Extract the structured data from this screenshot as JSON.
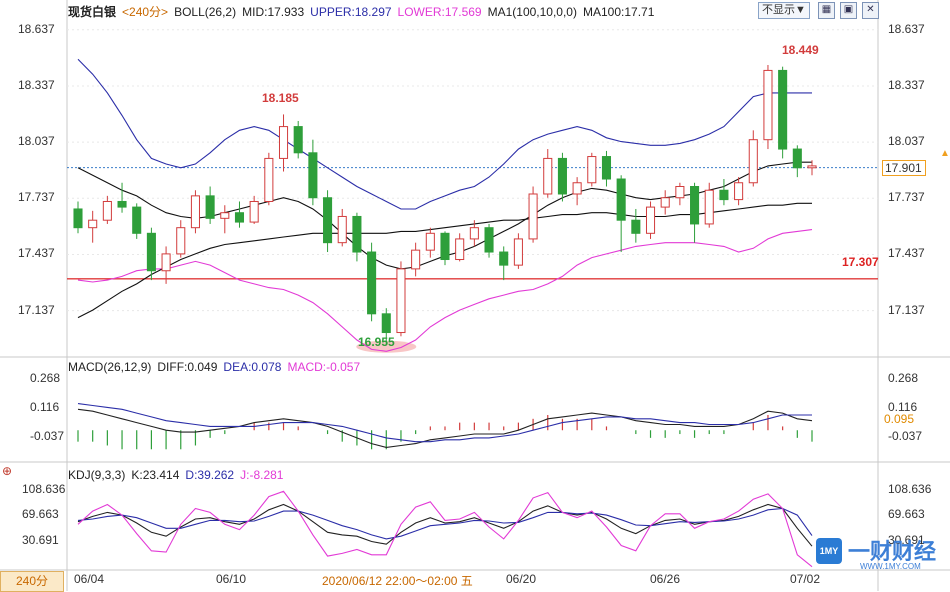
{
  "main_header": {
    "title": "现货白银",
    "period": "<240分>",
    "boll": "BOLL(26,2)",
    "mid": "MID:17.933",
    "upper": "UPPER:18.297",
    "lower": "LOWER:17.569",
    "ma": "MA1(100,10,0,0)",
    "ma100": "MA100:17.71"
  },
  "controls": {
    "hide_label": "不显示▼"
  },
  "macd_header": {
    "name": "MACD(26,12,9)",
    "diff": "DIFF:0.049",
    "dea": "DEA:0.078",
    "macd": "MACD:-0.057"
  },
  "kdj_header": {
    "name": "KDJ(9,3,3)",
    "k": "K:23.414",
    "d": "D:39.262",
    "j": "J:-8.281"
  },
  "price_axis": [
    "18.637",
    "18.337",
    "18.037",
    "17.737",
    "17.437",
    "17.137"
  ],
  "macd_axis": [
    "0.268",
    "0.116",
    "-0.037"
  ],
  "kdj_axis": [
    "108.636",
    "69.663",
    "30.691"
  ],
  "current_price": "17.901",
  "macd_current": "0.095",
  "level_line": "17.307",
  "annotations": {
    "high1": "18.185",
    "high2": "18.449",
    "low": "16.955"
  },
  "x_labels": [
    "06/04",
    "06/10",
    "06/20",
    "06/26",
    "07/02"
  ],
  "cursor_label": "2020/06/12 22:00～02:00 五",
  "period_button": "240分",
  "watermark": {
    "cn": "一财财经",
    "url": "WWW.1MY.COM"
  },
  "colors": {
    "up": "#d23c3c",
    "down": "#2e9f3a",
    "upper_band": "#2b2ea8",
    "lower_band": "#e23ad6",
    "ma": "#111111",
    "level": "#e03a3a"
  },
  "chart_data": {
    "type": "candlestick",
    "series": [
      {
        "name": "price",
        "values": [
          [
            17.68,
            17.72,
            17.55,
            17.58
          ],
          [
            17.58,
            17.67,
            17.5,
            17.62
          ],
          [
            17.62,
            17.75,
            17.6,
            17.72
          ],
          [
            17.72,
            17.82,
            17.66,
            17.69
          ],
          [
            17.69,
            17.71,
            17.52,
            17.55
          ],
          [
            17.55,
            17.58,
            17.3,
            17.35
          ],
          [
            17.35,
            17.48,
            17.28,
            17.44
          ],
          [
            17.44,
            17.62,
            17.42,
            17.58
          ],
          [
            17.58,
            17.78,
            17.55,
            17.75
          ],
          [
            17.75,
            17.8,
            17.6,
            17.63
          ],
          [
            17.63,
            17.7,
            17.55,
            17.66
          ],
          [
            17.66,
            17.72,
            17.58,
            17.61
          ],
          [
            17.61,
            17.75,
            17.6,
            17.72
          ],
          [
            17.72,
            17.98,
            17.7,
            17.95
          ],
          [
            17.95,
            18.185,
            17.88,
            18.12
          ],
          [
            18.12,
            18.15,
            17.95,
            17.98
          ],
          [
            17.98,
            18.05,
            17.7,
            17.74
          ],
          [
            17.74,
            17.78,
            17.45,
            17.5
          ],
          [
            17.5,
            17.68,
            17.48,
            17.64
          ],
          [
            17.64,
            17.66,
            17.4,
            17.45
          ],
          [
            17.45,
            17.5,
            17.08,
            17.12
          ],
          [
            17.12,
            17.15,
            16.955,
            17.02
          ],
          [
            17.02,
            17.4,
            17.0,
            17.36
          ],
          [
            17.36,
            17.5,
            17.32,
            17.46
          ],
          [
            17.46,
            17.58,
            17.42,
            17.55
          ],
          [
            17.55,
            17.56,
            17.38,
            17.41
          ],
          [
            17.41,
            17.55,
            17.4,
            17.52
          ],
          [
            17.52,
            17.62,
            17.48,
            17.58
          ],
          [
            17.58,
            17.6,
            17.42,
            17.45
          ],
          [
            17.45,
            17.48,
            17.3,
            17.38
          ],
          [
            17.38,
            17.55,
            17.36,
            17.52
          ],
          [
            17.52,
            17.8,
            17.5,
            17.76
          ],
          [
            17.76,
            18.0,
            17.74,
            17.95
          ],
          [
            17.95,
            17.98,
            17.72,
            17.76
          ],
          [
            17.76,
            17.85,
            17.7,
            17.82
          ],
          [
            17.82,
            17.98,
            17.8,
            17.96
          ],
          [
            17.96,
            17.99,
            17.8,
            17.84
          ],
          [
            17.84,
            17.86,
            17.45,
            17.62
          ],
          [
            17.62,
            17.68,
            17.5,
            17.55
          ],
          [
            17.55,
            17.72,
            17.52,
            17.69
          ],
          [
            17.69,
            17.78,
            17.65,
            17.74
          ],
          [
            17.74,
            17.82,
            17.7,
            17.8
          ],
          [
            17.8,
            17.82,
            17.5,
            17.6
          ],
          [
            17.6,
            17.82,
            17.58,
            17.78
          ],
          [
            17.78,
            17.84,
            17.7,
            17.73
          ],
          [
            17.73,
            17.85,
            17.7,
            17.82
          ],
          [
            17.82,
            18.1,
            17.8,
            18.05
          ],
          [
            18.05,
            18.449,
            18.0,
            18.42
          ],
          [
            18.42,
            18.44,
            17.95,
            18.0
          ],
          [
            18.0,
            18.02,
            17.85,
            17.9
          ],
          [
            17.9,
            17.94,
            17.86,
            17.91
          ]
        ]
      },
      {
        "name": "BOLL UPPER",
        "values": [
          18.48,
          18.4,
          18.3,
          18.18,
          18.05,
          17.95,
          17.92,
          17.9,
          17.92,
          17.98,
          18.05,
          18.1,
          18.12,
          18.1,
          18.05,
          18.0,
          17.95,
          17.9,
          17.85,
          17.8,
          17.76,
          17.72,
          17.68,
          17.68,
          17.72,
          17.75,
          17.78,
          17.8,
          17.85,
          17.92,
          18.0,
          18.05,
          18.08,
          18.1,
          18.12,
          18.1,
          18.06,
          18.04,
          18.03,
          18.02,
          18.02,
          18.03,
          18.05,
          18.08,
          18.12,
          18.2,
          18.28,
          18.3,
          18.3,
          18.3,
          18.3
        ]
      },
      {
        "name": "BOLL MID",
        "values": [
          17.9,
          17.86,
          17.82,
          17.78,
          17.75,
          17.7,
          17.66,
          17.64,
          17.63,
          17.64,
          17.66,
          17.68,
          17.7,
          17.72,
          17.74,
          17.72,
          17.68,
          17.62,
          17.55,
          17.48,
          17.42,
          17.38,
          17.36,
          17.37,
          17.4,
          17.43,
          17.45,
          17.48,
          17.52,
          17.56,
          17.6,
          17.65,
          17.7,
          17.74,
          17.77,
          17.79,
          17.78,
          17.76,
          17.74,
          17.73,
          17.74,
          17.75,
          17.76,
          17.78,
          17.8,
          17.84,
          17.88,
          17.91,
          17.92,
          17.93,
          17.93
        ]
      },
      {
        "name": "BOLL LOWER",
        "values": [
          17.3,
          17.29,
          17.3,
          17.32,
          17.35,
          17.36,
          17.36,
          17.38,
          17.4,
          17.38,
          17.34,
          17.3,
          17.28,
          17.26,
          17.25,
          17.22,
          17.18,
          17.12,
          17.05,
          16.98,
          16.93,
          16.92,
          16.94,
          16.98,
          17.05,
          17.1,
          17.14,
          17.17,
          17.2,
          17.22,
          17.24,
          17.25,
          17.28,
          17.32,
          17.38,
          17.42,
          17.44,
          17.46,
          17.48,
          17.49,
          17.5,
          17.5,
          17.5,
          17.49,
          17.48,
          17.45,
          17.47,
          17.52,
          17.55,
          17.56,
          17.57
        ]
      },
      {
        "name": "MA100",
        "values": [
          17.1,
          17.14,
          17.19,
          17.24,
          17.28,
          17.33,
          17.37,
          17.41,
          17.44,
          17.47,
          17.49,
          17.5,
          17.51,
          17.52,
          17.53,
          17.54,
          17.55,
          17.55,
          17.55,
          17.55,
          17.55,
          17.55,
          17.56,
          17.56,
          17.57,
          17.58,
          17.59,
          17.6,
          17.61,
          17.62,
          17.62,
          17.63,
          17.64,
          17.65,
          17.65,
          17.66,
          17.66,
          17.65,
          17.64,
          17.64,
          17.64,
          17.65,
          17.65,
          17.66,
          17.67,
          17.68,
          17.69,
          17.7,
          17.7,
          17.71,
          17.71
        ]
      },
      {
        "name": "DIFF",
        "values": [
          0.11,
          0.1,
          0.08,
          0.06,
          0.04,
          0.02,
          0.0,
          -0.01,
          -0.01,
          0.0,
          0.01,
          0.02,
          0.04,
          0.05,
          0.06,
          0.05,
          0.04,
          0.02,
          -0.01,
          -0.04,
          -0.07,
          -0.09,
          -0.08,
          -0.07,
          -0.05,
          -0.04,
          -0.03,
          -0.02,
          -0.02,
          -0.02,
          0.0,
          0.03,
          0.06,
          0.07,
          0.08,
          0.09,
          0.08,
          0.07,
          0.05,
          0.04,
          0.03,
          0.03,
          0.02,
          0.02,
          0.02,
          0.03,
          0.06,
          0.1,
          0.09,
          0.06,
          0.05
        ]
      },
      {
        "name": "DEA",
        "values": [
          0.14,
          0.13,
          0.12,
          0.11,
          0.09,
          0.07,
          0.05,
          0.04,
          0.03,
          0.02,
          0.02,
          0.02,
          0.02,
          0.03,
          0.04,
          0.04,
          0.04,
          0.03,
          0.02,
          0.0,
          -0.02,
          -0.04,
          -0.05,
          -0.06,
          -0.06,
          -0.05,
          -0.05,
          -0.04,
          -0.04,
          -0.03,
          -0.02,
          0.0,
          0.02,
          0.04,
          0.05,
          0.06,
          0.07,
          0.07,
          0.06,
          0.06,
          0.05,
          0.04,
          0.04,
          0.03,
          0.03,
          0.03,
          0.04,
          0.06,
          0.08,
          0.08,
          0.08
        ]
      },
      {
        "name": "K",
        "values": [
          60,
          68,
          74,
          70,
          58,
          44,
          38,
          52,
          64,
          66,
          60,
          56,
          64,
          78,
          86,
          76,
          60,
          44,
          40,
          38,
          30,
          26,
          44,
          58,
          66,
          58,
          60,
          66,
          58,
          50,
          60,
          76,
          84,
          74,
          70,
          74,
          64,
          50,
          42,
          54,
          62,
          64,
          56,
          60,
          62,
          68,
          78,
          86,
          80,
          50,
          23
        ]
      },
      {
        "name": "D",
        "values": [
          62,
          64,
          68,
          70,
          66,
          58,
          50,
          50,
          56,
          62,
          62,
          60,
          61,
          68,
          76,
          76,
          70,
          62,
          54,
          48,
          40,
          34,
          38,
          46,
          54,
          56,
          58,
          62,
          61,
          58,
          59,
          66,
          74,
          74,
          72,
          73,
          70,
          63,
          55,
          54,
          57,
          60,
          59,
          60,
          61,
          64,
          70,
          78,
          80,
          70,
          39
        ]
      },
      {
        "name": "J",
        "values": [
          56,
          76,
          86,
          70,
          42,
          16,
          14,
          56,
          80,
          74,
          56,
          48,
          70,
          98,
          106,
          76,
          40,
          8,
          12,
          18,
          10,
          10,
          56,
          82,
          90,
          62,
          64,
          74,
          52,
          34,
          62,
          96,
          104,
          74,
          66,
          76,
          52,
          24,
          16,
          54,
          72,
          72,
          50,
          60,
          64,
          76,
          94,
          102,
          80,
          10,
          -8
        ]
      }
    ],
    "ylim": [
      16.9,
      18.7
    ],
    "macd_ylim": [
      -0.13,
      0.29
    ],
    "kdj_ylim": [
      -10,
      120
    ],
    "x_ticks": [
      "06/04",
      "06/10",
      "06/20",
      "06/26",
      "07/02"
    ]
  }
}
